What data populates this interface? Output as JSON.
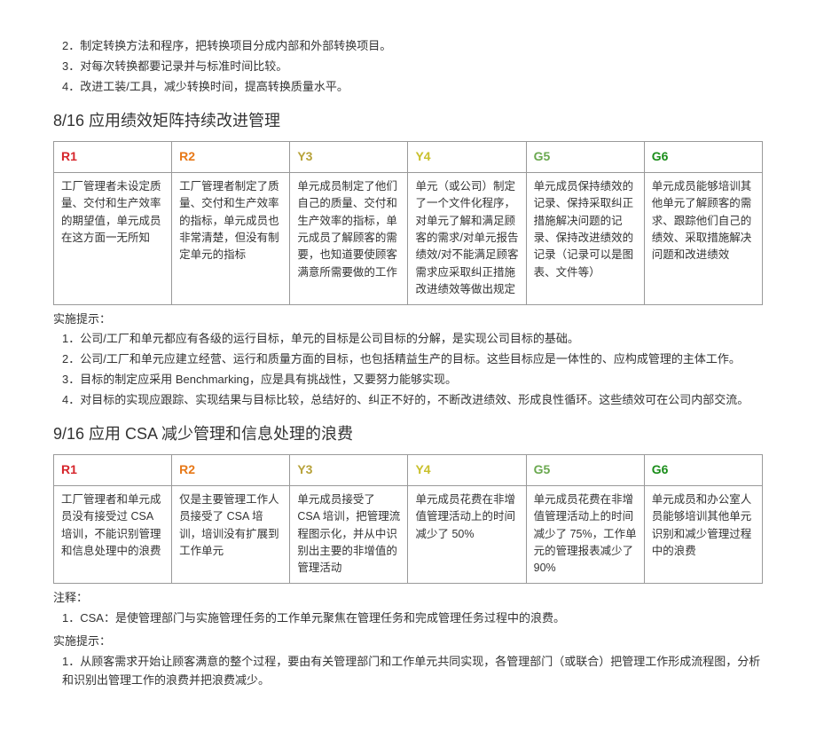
{
  "intro_items": [
    "2．制定转换方法和程序，把转换项目分成内部和外部转换项目。",
    "3．对每次转换都要记录并与标准时间比较。",
    "4．改进工装/工具，减少转换时间，提高转换质量水平。"
  ],
  "section1": {
    "title": "8/16 应用绩效矩阵持续改进管理",
    "headers": [
      {
        "label": "R1",
        "cls": "c-r1"
      },
      {
        "label": "R2",
        "cls": "c-r2"
      },
      {
        "label": "Y3",
        "cls": "c-y3"
      },
      {
        "label": "Y4",
        "cls": "c-y4"
      },
      {
        "label": "G5",
        "cls": "c-g5"
      },
      {
        "label": "G6",
        "cls": "c-g6"
      }
    ],
    "cells": [
      "工厂管理者未设定质量、交付和生产效率的期望值，单元成员在这方面一无所知",
      "工厂管理者制定了质量、交付和生产效率的指标，单元成员也非常清楚，但没有制定单元的指标",
      "单元成员制定了他们自己的质量、交付和生产效率的指标，单元成员了解顾客的需要，也知道要使顾客满意所需要做的工作",
      "单元（或公司）制定了一个文件化程序，对单元了解和满足顾客的需求/对单元报告绩效/对不能满足顾客需求应采取纠正措施改进绩效等做出规定",
      "单元成员保持绩效的记录、保持采取纠正措施解决问题的记录、保持改进绩效的记录（记录可以是图表、文件等）",
      "单元成员能够培训其他单元了解顾客的需求、跟踪他们自己的绩效、采取措施解决问题和改进绩效"
    ],
    "hint_label": "实施提示：",
    "hints": [
      "1．公司/工厂和单元都应有各级的运行目标，单元的目标是公司目标的分解，是实现公司目标的基础。",
      "2．公司/工厂和单元应建立经营、运行和质量方面的目标，也包括精益生产的目标。这些目标应是一体性的、应构成管理的主体工作。",
      "3．目标的制定应采用 Benchmarking，应是具有挑战性，又要努力能够实现。",
      "4．对目标的实现应跟踪、实现结果与目标比较，总结好的、纠正不好的，不断改进绩效、形成良性循环。这些绩效可在公司内部交流。"
    ]
  },
  "section2": {
    "title": "9/16 应用 CSA 减少管理和信息处理的浪费",
    "headers": [
      {
        "label": "R1",
        "cls": "c-r1"
      },
      {
        "label": "R2",
        "cls": "c-r2"
      },
      {
        "label": "Y3",
        "cls": "c-y3"
      },
      {
        "label": "Y4",
        "cls": "c-y4"
      },
      {
        "label": "G5",
        "cls": "c-g5"
      },
      {
        "label": "G6",
        "cls": "c-g6"
      }
    ],
    "cells": [
      "工厂管理者和单元成员没有接受过 CSA 培训，不能识别管理和信息处理中的浪费",
      "仅是主要管理工作人员接受了 CSA 培训，培训没有扩展到工作单元",
      "单元成员接受了 CSA 培训，把管理流程图示化，并从中识别出主要的非增值的管理活动",
      "单元成员花费在非增值管理活动上的时间减少了 50%",
      "单元成员花费在非增值管理活动上的时间减少了 75%，工作单元的管理报表减少了 90%",
      "单元成员和办公室人员能够培训其他单元识别和减少管理过程中的浪费"
    ],
    "note_label": "注释：",
    "notes": [
      "1．CSA：是使管理部门与实施管理任务的工作单元聚焦在管理任务和完成管理任务过程中的浪费。"
    ],
    "hint_label": "实施提示：",
    "hints": [
      "1．从顾客需求开始让顾客满意的整个过程，要由有关管理部门和工作单元共同实现，各管理部门（或联合）把管理工作形成流程图，分析和识别出管理工作的浪费并把浪费减少。"
    ]
  }
}
